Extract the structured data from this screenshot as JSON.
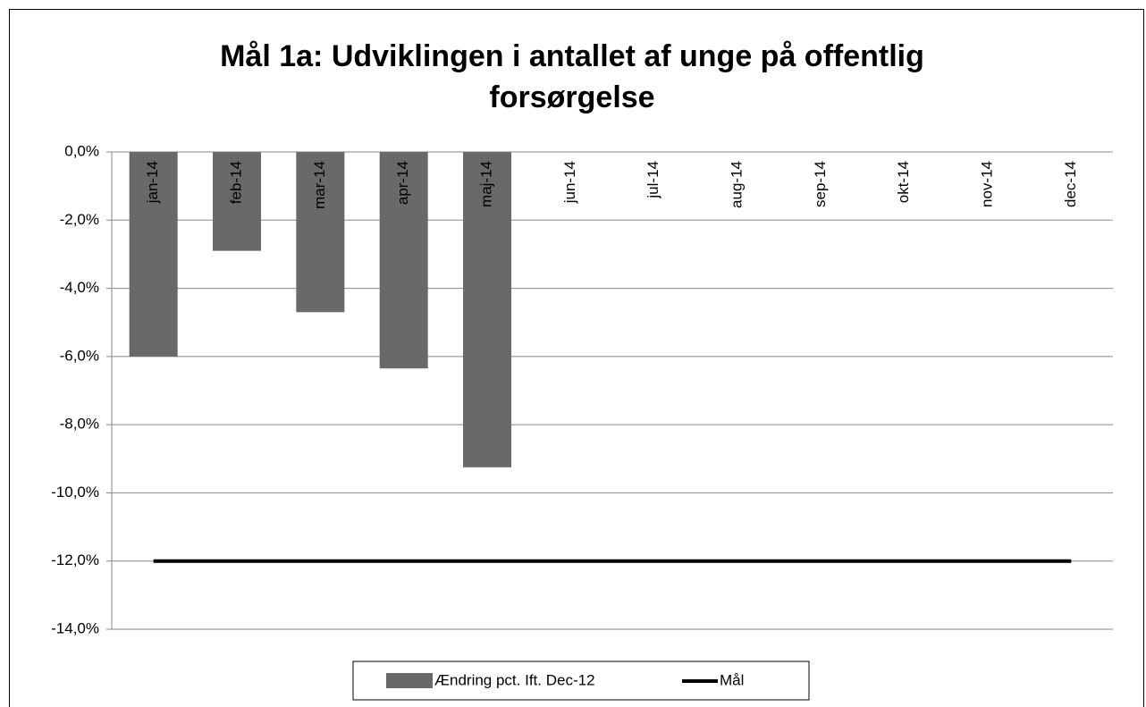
{
  "chart_data": {
    "type": "bar",
    "title": "Mål 1a: Udviklingen i antallet af unge på offentlig forsørgelse",
    "categories": [
      "jan-14",
      "feb-14",
      "mar-14",
      "apr-14",
      "maj-14",
      "jun-14",
      "jul-14",
      "aug-14",
      "sep-14",
      "okt-14",
      "nov-14",
      "dec-14"
    ],
    "series": [
      {
        "name": "Ændring pct. Ift. Dec-12",
        "type": "bar",
        "color": "#696969",
        "values": [
          -6.0,
          -2.9,
          -4.7,
          -6.35,
          -9.25,
          null,
          null,
          null,
          null,
          null,
          null,
          null
        ]
      },
      {
        "name": "Mål",
        "type": "line",
        "color": "#000000",
        "values": [
          -12,
          -12,
          -12,
          -12,
          -12,
          -12,
          -12,
          -12,
          -12,
          -12,
          -12,
          -12
        ]
      }
    ],
    "ylim": [
      -14,
      0
    ],
    "yticks": [
      {
        "value": 0,
        "label": "0,0%"
      },
      {
        "value": -2,
        "label": "-2,0%"
      },
      {
        "value": -4,
        "label": "-4,0%"
      },
      {
        "value": -6,
        "label": "-6,0%"
      },
      {
        "value": -8,
        "label": "-8,0%"
      },
      {
        "value": -10,
        "label": "-10,0%"
      },
      {
        "value": -12,
        "label": "-12,0%"
      },
      {
        "value": -14,
        "label": "-14,0%"
      }
    ],
    "grid": true,
    "legend": "bottom"
  }
}
